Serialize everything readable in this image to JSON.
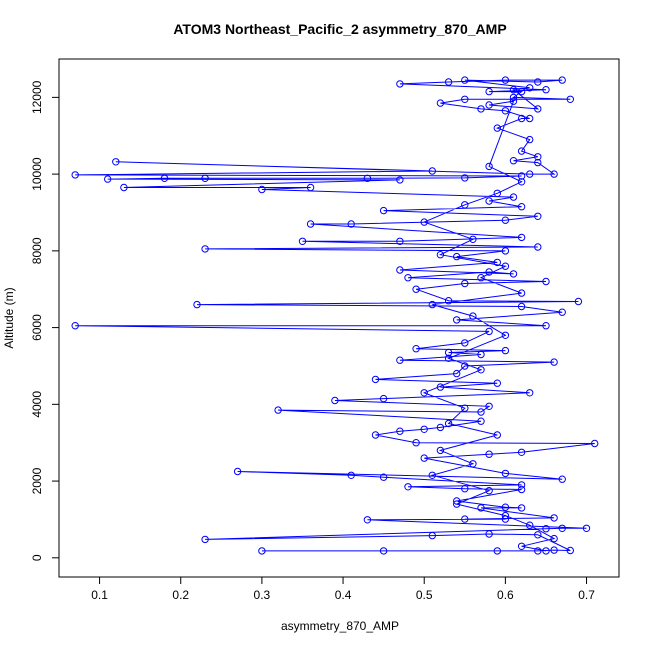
{
  "chart_data": {
    "type": "scatter",
    "title": "ATOM3 Northeast_Pacific_2 asymmetry_870_AMP",
    "xlabel": "asymmetry_870_AMP",
    "ylabel": "Altitude (m)",
    "xlim": [
      0.05,
      0.74
    ],
    "ylim": [
      -500,
      13000
    ],
    "xticks": [
      0.1,
      0.2,
      0.3,
      0.4,
      0.5,
      0.6,
      0.7
    ],
    "yticks": [
      0,
      2000,
      4000,
      6000,
      8000,
      10000,
      12000
    ],
    "x_tick_labels": [
      "0.1",
      "0.2",
      "0.3",
      "0.4",
      "0.5",
      "0.6",
      "0.7"
    ],
    "y_tick_labels": [
      "0",
      "2000",
      "4000",
      "6000",
      "8000",
      "10000",
      "12000"
    ],
    "grid": false,
    "legend": "none",
    "series_color": "#0000ff",
    "marker": "open-circle",
    "connected": true,
    "points": [
      [
        0.59,
        180
      ],
      [
        0.3,
        180
      ],
      [
        0.45,
        180
      ],
      [
        0.64,
        180
      ],
      [
        0.66,
        200
      ],
      [
        0.68,
        190
      ],
      [
        0.64,
        600
      ],
      [
        0.58,
        620
      ],
      [
        0.51,
        580
      ],
      [
        0.23,
        480
      ],
      [
        0.65,
        760
      ],
      [
        0.67,
        770
      ],
      [
        0.7,
        770
      ],
      [
        0.43,
        990
      ],
      [
        0.6,
        1010
      ],
      [
        0.55,
        1010
      ],
      [
        0.66,
        1040
      ],
      [
        0.57,
        1300
      ],
      [
        0.62,
        1300
      ],
      [
        0.6,
        1320
      ],
      [
        0.54,
        1480
      ],
      [
        0.62,
        1780
      ],
      [
        0.55,
        1800
      ],
      [
        0.48,
        1850
      ],
      [
        0.62,
        1900
      ],
      [
        0.45,
        2100
      ],
      [
        0.41,
        2150
      ],
      [
        0.27,
        2250
      ],
      [
        0.67,
        2050
      ],
      [
        0.6,
        2200
      ],
      [
        0.5,
        2600
      ],
      [
        0.58,
        2700
      ],
      [
        0.62,
        2750
      ],
      [
        0.71,
        2980
      ],
      [
        0.49,
        3000
      ],
      [
        0.44,
        3200
      ],
      [
        0.47,
        3300
      ],
      [
        0.5,
        3350
      ],
      [
        0.52,
        3400
      ],
      [
        0.57,
        3560
      ],
      [
        0.32,
        3850
      ],
      [
        0.57,
        3800
      ],
      [
        0.58,
        3950
      ],
      [
        0.39,
        4100
      ],
      [
        0.45,
        4150
      ],
      [
        0.63,
        4300
      ],
      [
        0.52,
        4450
      ],
      [
        0.59,
        4550
      ],
      [
        0.44,
        4650
      ],
      [
        0.54,
        4800
      ],
      [
        0.55,
        5000
      ],
      [
        0.66,
        5100
      ],
      [
        0.47,
        5150
      ],
      [
        0.57,
        5300
      ],
      [
        0.53,
        5350
      ],
      [
        0.6,
        5400
      ],
      [
        0.49,
        5450
      ],
      [
        0.55,
        5600
      ],
      [
        0.58,
        5900
      ],
      [
        0.07,
        6050
      ],
      [
        0.65,
        6050
      ],
      [
        0.54,
        6200
      ],
      [
        0.67,
        6400
      ],
      [
        0.62,
        6550
      ],
      [
        0.22,
        6600
      ],
      [
        0.69,
        6680
      ],
      [
        0.53,
        6700
      ],
      [
        0.49,
        7000
      ],
      [
        0.55,
        7150
      ],
      [
        0.65,
        7200
      ],
      [
        0.48,
        7300
      ],
      [
        0.58,
        7450
      ],
      [
        0.61,
        7400
      ],
      [
        0.47,
        7500
      ],
      [
        0.59,
        7700
      ],
      [
        0.54,
        7850
      ],
      [
        0.6,
        8000
      ],
      [
        0.23,
        8050
      ],
      [
        0.64,
        8100
      ],
      [
        0.35,
        8250
      ],
      [
        0.47,
        8250
      ],
      [
        0.62,
        8350
      ],
      [
        0.36,
        8700
      ],
      [
        0.41,
        8700
      ],
      [
        0.6,
        8800
      ],
      [
        0.64,
        8900
      ],
      [
        0.45,
        9050
      ],
      [
        0.62,
        9150
      ],
      [
        0.58,
        9300
      ],
      [
        0.61,
        9400
      ],
      [
        0.3,
        9600
      ],
      [
        0.36,
        9650
      ],
      [
        0.13,
        9650
      ],
      [
        0.47,
        9850
      ],
      [
        0.11,
        9870
      ],
      [
        0.18,
        9890
      ],
      [
        0.23,
        9890
      ],
      [
        0.43,
        9890
      ],
      [
        0.55,
        9900
      ],
      [
        0.62,
        9950
      ],
      [
        0.07,
        9980
      ],
      [
        0.51,
        10080
      ],
      [
        0.12,
        10320
      ],
      [
        0.63,
        10000
      ],
      [
        0.66,
        10000
      ],
      [
        0.64,
        10300
      ],
      [
        0.61,
        10350
      ],
      [
        0.64,
        10450
      ],
      [
        0.62,
        10600
      ],
      [
        0.63,
        10900
      ],
      [
        0.59,
        11200
      ],
      [
        0.62,
        11450
      ],
      [
        0.63,
        11450
      ],
      [
        0.6,
        11650
      ],
      [
        0.57,
        11700
      ],
      [
        0.52,
        11850
      ],
      [
        0.55,
        11950
      ],
      [
        0.68,
        11950
      ],
      [
        0.61,
        12000
      ],
      [
        0.62,
        12150
      ],
      [
        0.58,
        12150
      ],
      [
        0.65,
        12200
      ],
      [
        0.47,
        12350
      ],
      [
        0.53,
        12400
      ],
      [
        0.6,
        12450
      ],
      [
        0.67,
        12450
      ],
      [
        0.64,
        12400
      ],
      [
        0.55,
        12450
      ],
      [
        0.63,
        12250
      ],
      [
        0.61,
        12200
      ],
      [
        0.64,
        11700
      ],
      [
        0.58,
        11800
      ],
      [
        0.61,
        11900
      ],
      [
        0.58,
        10200
      ],
      [
        0.62,
        9800
      ],
      [
        0.59,
        9500
      ],
      [
        0.55,
        9200
      ],
      [
        0.5,
        8750
      ],
      [
        0.56,
        8300
      ],
      [
        0.52,
        7900
      ],
      [
        0.6,
        7600
      ],
      [
        0.57,
        7300
      ],
      [
        0.62,
        6900
      ],
      [
        0.51,
        6600
      ],
      [
        0.56,
        6300
      ],
      [
        0.6,
        5800
      ],
      [
        0.53,
        5200
      ],
      [
        0.57,
        4900
      ],
      [
        0.5,
        4300
      ],
      [
        0.55,
        3900
      ],
      [
        0.53,
        3500
      ],
      [
        0.59,
        3200
      ],
      [
        0.52,
        2800
      ],
      [
        0.56,
        2450
      ],
      [
        0.51,
        2150
      ],
      [
        0.58,
        1750
      ],
      [
        0.54,
        1400
      ],
      [
        0.6,
        1100
      ],
      [
        0.63,
        850
      ],
      [
        0.66,
        500
      ],
      [
        0.62,
        300
      ],
      [
        0.65,
        180
      ]
    ]
  }
}
